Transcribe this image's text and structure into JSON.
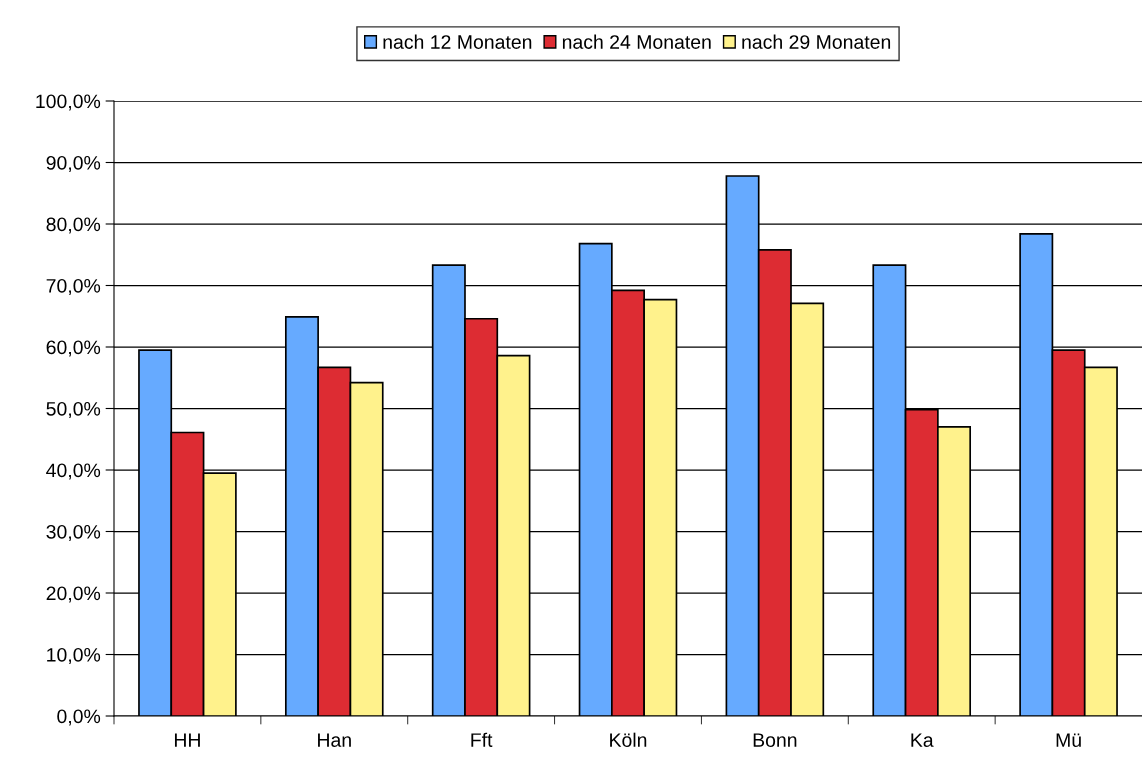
{
  "chart_data": {
    "type": "bar",
    "categories": [
      "HH",
      "Han",
      "Fft",
      "Köln",
      "Bonn",
      "Ka",
      "Mü"
    ],
    "series": [
      {
        "name": "nach 12 Monaten",
        "color": "#66aaff",
        "values": [
          59.5,
          64.9,
          73.3,
          76.8,
          87.8,
          73.3,
          78.4
        ]
      },
      {
        "name": "nach 24 Monaten",
        "color": "#dd2c33",
        "values": [
          46.1,
          56.7,
          64.6,
          69.2,
          75.8,
          49.8,
          59.5
        ]
      },
      {
        "name": "nach 29 Monaten",
        "color": "#fff28c",
        "values": [
          39.5,
          54.2,
          58.6,
          67.7,
          67.1,
          47.0,
          56.7
        ]
      }
    ],
    "ylim": [
      0,
      100
    ],
    "yticks": [
      {
        "value": 0,
        "label": "0,0%"
      },
      {
        "value": 10,
        "label": "10,0%"
      },
      {
        "value": 20,
        "label": "20,0%"
      },
      {
        "value": 30,
        "label": "30,0%"
      },
      {
        "value": 40,
        "label": "40,0%"
      },
      {
        "value": 50,
        "label": "50,0%"
      },
      {
        "value": 60,
        "label": "60,0%"
      },
      {
        "value": 70,
        "label": "70,0%"
      },
      {
        "value": 80,
        "label": "80,0%"
      },
      {
        "value": 90,
        "label": "90,0%"
      },
      {
        "value": 100,
        "label": "100,0%"
      }
    ],
    "grid": "y",
    "legend": "top"
  }
}
